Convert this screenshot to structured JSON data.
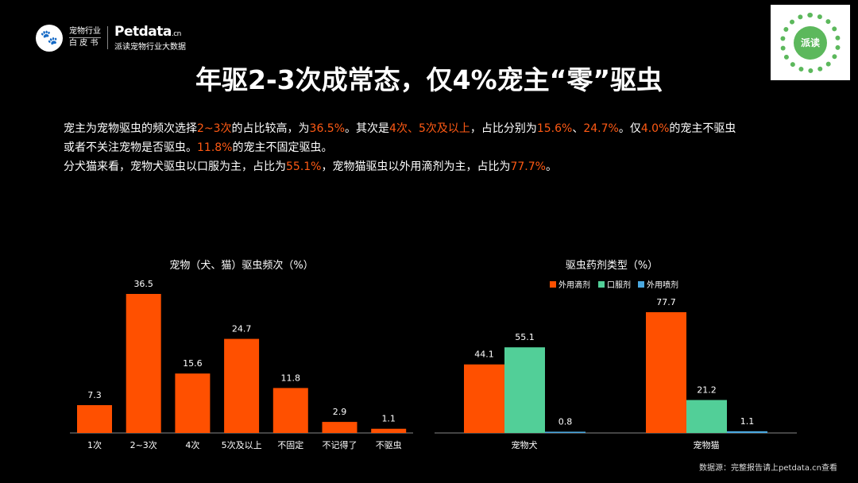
{
  "header": {
    "logo_line1": "宠物行业",
    "logo_line2": "白 皮 书",
    "brand": "Petdata",
    "brand_suffix": ".cn",
    "brand_tagline": "派读宠物行业大数据",
    "qr_label": "派读",
    "qr_icon": "qr-code-icon"
  },
  "title": "年驱2-3次成常态，仅4%宠主“零”驱虫",
  "paragraph": {
    "line1": [
      {
        "t": "宠主为宠物驱虫的频次选择",
        "h": false
      },
      {
        "t": "2~3次",
        "h": true
      },
      {
        "t": "的占比较高，为",
        "h": false
      },
      {
        "t": "36.5%",
        "h": true
      },
      {
        "t": "。其次是",
        "h": false
      },
      {
        "t": "4次、5次及以上",
        "h": true
      },
      {
        "t": "，占比分别为",
        "h": false
      },
      {
        "t": "15.6%",
        "h": true
      },
      {
        "t": "、",
        "h": false
      },
      {
        "t": "24.7%",
        "h": true
      },
      {
        "t": "。仅",
        "h": false
      },
      {
        "t": "4.0%",
        "h": true
      },
      {
        "t": "的宠主不驱虫",
        "h": false
      }
    ],
    "line2": [
      {
        "t": "或者不关注宠物是否驱虫。",
        "h": false
      },
      {
        "t": "11.8%",
        "h": true
      },
      {
        "t": "的宠主不固定驱虫。",
        "h": false
      }
    ],
    "line3": [
      {
        "t": "分犬猫来看，宠物犬驱虫以口服为主，占比为",
        "h": false
      },
      {
        "t": "55.1%",
        "h": true
      },
      {
        "t": "，宠物猫驱虫以外用滴剂为主，占比为",
        "h": false
      },
      {
        "t": "77.7%",
        "h": true
      },
      {
        "t": "。",
        "h": false
      }
    ]
  },
  "colors": {
    "accent": "#ff5014",
    "orange": "#ff5000",
    "green": "#52cf98",
    "blue": "#4aa8e0"
  },
  "chart_data": [
    {
      "type": "bar",
      "title": "宠物（犬、猫）驱虫频次（%）",
      "categories": [
        "1次",
        "2~3次",
        "4次",
        "5次及以上",
        "不固定",
        "不记得了",
        "不驱虫"
      ],
      "values": [
        7.3,
        36.5,
        15.6,
        24.7,
        11.8,
        2.9,
        1.1
      ],
      "ylim": [
        0,
        36.5
      ],
      "grid": false
    },
    {
      "type": "bar",
      "title": "驱虫药剂类型（%）",
      "legend": "top",
      "categories": [
        "宠物犬",
        "宠物猫"
      ],
      "series": [
        {
          "name": "外用滴剂",
          "values": [
            44.1,
            77.7
          ]
        },
        {
          "name": "口服剂",
          "values": [
            55.1,
            21.2
          ]
        },
        {
          "name": "外用喷剂",
          "values": [
            0.8,
            1.1
          ]
        }
      ],
      "ylim": [
        0,
        77.7
      ],
      "grid": false
    }
  ],
  "footer": {
    "source": "数据源：完整报告请上petdata.cn查看"
  }
}
